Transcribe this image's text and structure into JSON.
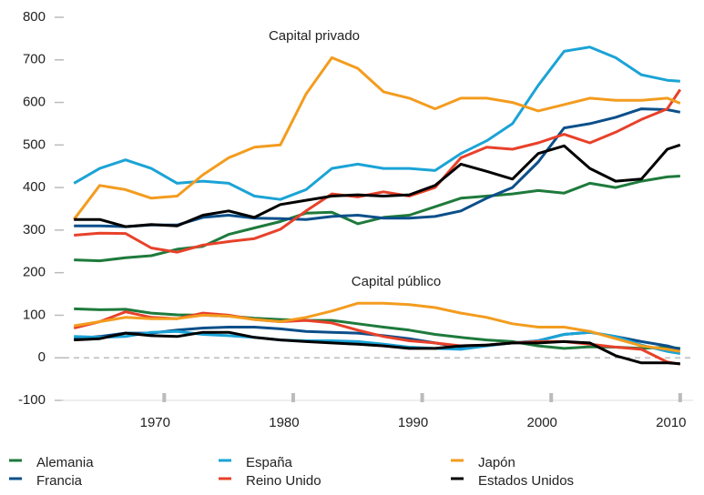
{
  "chart_data": {
    "type": "line",
    "annotations": [
      "Capital privado",
      "Capital público"
    ],
    "x": [
      1963,
      1965,
      1967,
      1969,
      1971,
      1973,
      1975,
      1977,
      1979,
      1981,
      1983,
      1985,
      1987,
      1989,
      1991,
      1993,
      1995,
      1997,
      1999,
      2001,
      2003,
      2005,
      2007,
      2009,
      2010
    ],
    "xlim": [
      1962,
      2011
    ],
    "xticks": [
      1970,
      1980,
      1990,
      2000,
      2010
    ],
    "ylim": [
      -100,
      800
    ],
    "yticks": [
      -100,
      0,
      100,
      200,
      300,
      400,
      500,
      600,
      700,
      800
    ],
    "zero_line": true,
    "legend": "bottom",
    "series": [
      {
        "name": "Alemania",
        "color": "#1e7a3c",
        "values": [
          230,
          228,
          235,
          240,
          255,
          262,
          290,
          305,
          320,
          340,
          342,
          315,
          330,
          335,
          355,
          375,
          380,
          385,
          393,
          387,
          410,
          400,
          415,
          425,
          427
        ],
        "public_values": [
          115,
          113,
          114,
          105,
          101,
          100,
          98,
          93,
          90,
          88,
          88,
          80,
          72,
          65,
          55,
          48,
          42,
          38,
          28,
          22,
          26,
          25,
          22,
          25,
          22
        ]
      },
      {
        "name": "Francia",
        "color": "#0b4f8a",
        "values": [
          310,
          310,
          308,
          312,
          312,
          330,
          335,
          328,
          327,
          325,
          332,
          335,
          328,
          328,
          332,
          345,
          375,
          400,
          460,
          540,
          550,
          565,
          585,
          583,
          577
        ],
        "public_values": [
          45,
          50,
          58,
          58,
          65,
          70,
          72,
          72,
          68,
          62,
          60,
          58,
          52,
          45,
          35,
          25,
          30,
          35,
          40,
          55,
          60,
          50,
          38,
          28,
          20
        ]
      },
      {
        "name": "España",
        "color": "#1ba3d6",
        "values": [
          410,
          445,
          465,
          445,
          410,
          415,
          410,
          380,
          372,
          395,
          445,
          455,
          445,
          445,
          440,
          480,
          510,
          550,
          640,
          720,
          730,
          705,
          665,
          652,
          650
        ],
        "public_values": [
          50,
          48,
          50,
          60,
          62,
          55,
          52,
          48,
          42,
          40,
          40,
          38,
          32,
          25,
          22,
          20,
          28,
          35,
          40,
          55,
          60,
          50,
          30,
          15,
          10
        ]
      },
      {
        "name": "Reino Unido",
        "color": "#e8412a",
        "values": [
          288,
          293,
          292,
          258,
          248,
          265,
          273,
          280,
          302,
          345,
          385,
          378,
          390,
          380,
          400,
          470,
          495,
          490,
          505,
          525,
          505,
          530,
          560,
          585,
          630
        ],
        "public_values": [
          70,
          85,
          108,
          95,
          92,
          105,
          100,
          90,
          85,
          88,
          82,
          65,
          50,
          40,
          35,
          28,
          30,
          35,
          38,
          38,
          32,
          25,
          20,
          -10,
          -15
        ]
      },
      {
        "name": "Japón",
        "color": "#f39c1f",
        "values": [
          325,
          405,
          395,
          375,
          380,
          430,
          470,
          495,
          500,
          620,
          705,
          680,
          625,
          610,
          585,
          610,
          610,
          600,
          580,
          595,
          610,
          605,
          605,
          610,
          598
        ],
        "public_values": [
          75,
          85,
          95,
          92,
          92,
          100,
          98,
          90,
          85,
          95,
          110,
          128,
          128,
          125,
          118,
          105,
          95,
          80,
          72,
          72,
          62,
          45,
          28,
          20,
          15
        ]
      },
      {
        "name": "Estados Unidos",
        "color": "#000000",
        "values": [
          325,
          325,
          308,
          313,
          310,
          335,
          345,
          330,
          360,
          370,
          380,
          383,
          380,
          383,
          405,
          455,
          438,
          420,
          480,
          498,
          445,
          415,
          420,
          490,
          500
        ],
        "public_values": [
          42,
          45,
          58,
          52,
          50,
          60,
          60,
          48,
          42,
          38,
          35,
          32,
          28,
          22,
          22,
          28,
          30,
          35,
          35,
          38,
          35,
          5,
          -12,
          -12,
          -14
        ]
      }
    ]
  }
}
